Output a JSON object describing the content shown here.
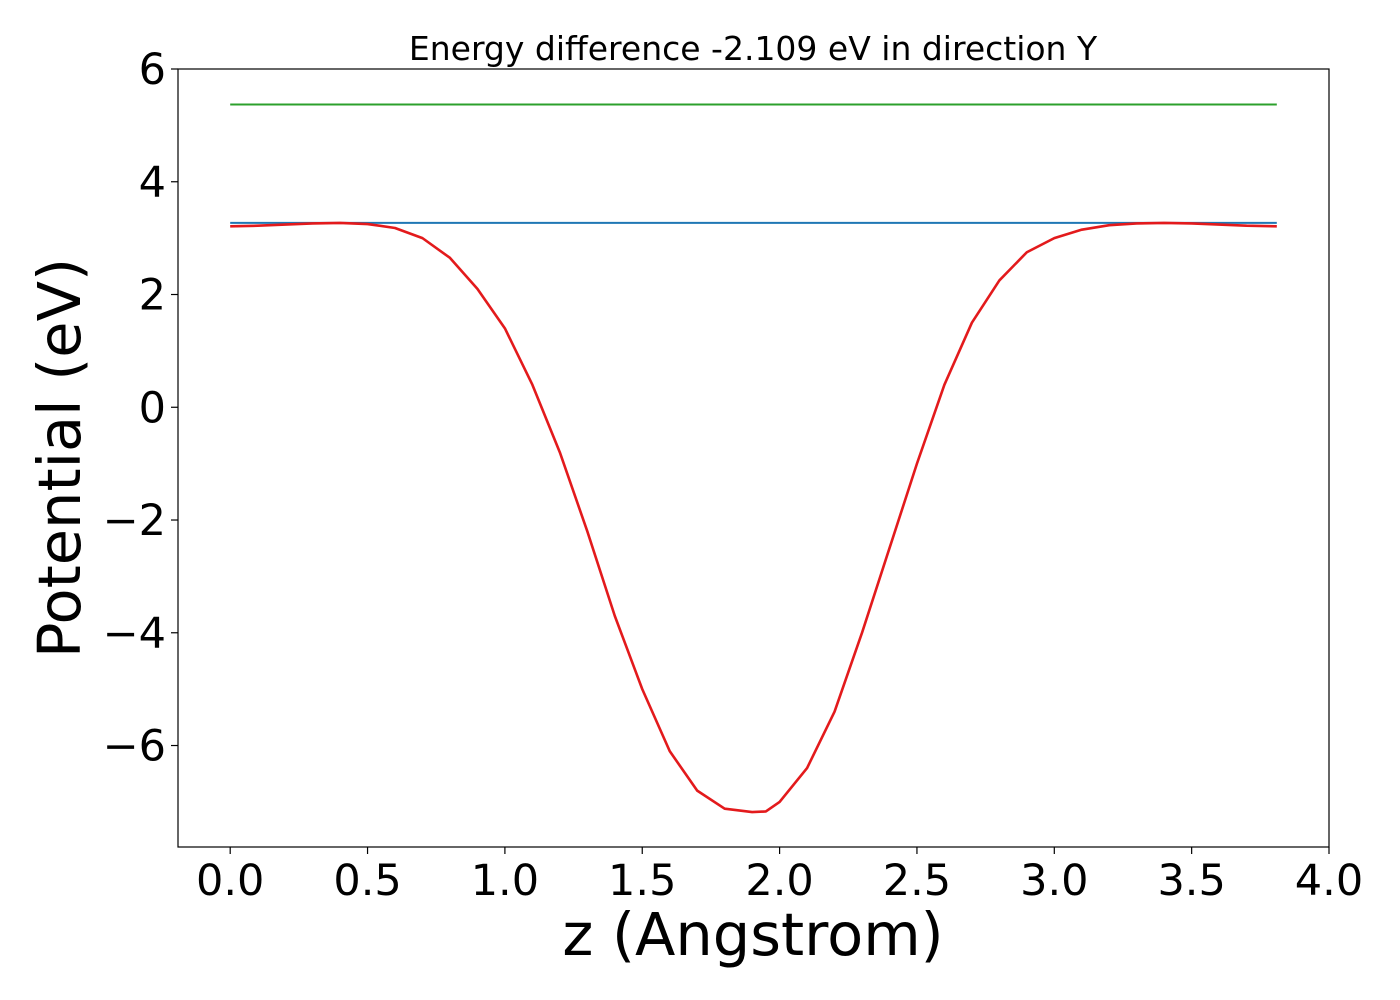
{
  "chart_data": {
    "type": "line",
    "title": "Energy difference -2.109 eV in direction Y",
    "xlabel": "z (Angstrom)",
    "ylabel": "Potential (eV)",
    "xlim": [
      -0.19,
      4.0
    ],
    "ylim": [
      -7.8,
      6.0
    ],
    "xticks": [
      0.0,
      0.5,
      1.0,
      1.5,
      2.0,
      2.5,
      3.0,
      3.5,
      4.0
    ],
    "xtick_labels": [
      "0.0",
      "0.5",
      "1.0",
      "1.5",
      "2.0",
      "2.5",
      "3.0",
      "3.5",
      "4.0"
    ],
    "yticks": [
      6,
      4,
      2,
      0,
      -2,
      -4,
      -6
    ],
    "ytick_labels": [
      "6",
      "4",
      "2",
      "0",
      "−2",
      "−4",
      "−6"
    ],
    "grid": false,
    "legend": "none",
    "series": [
      {
        "color": "#2ca02c",
        "x": [
          0.0,
          3.81
        ],
        "y": [
          5.37,
          5.37
        ]
      },
      {
        "color": "#1f77b4",
        "x": [
          0.0,
          3.81
        ],
        "y": [
          3.27,
          3.27
        ]
      },
      {
        "color": "#e31a1c",
        "x": [
          0.0,
          0.1,
          0.2,
          0.3,
          0.4,
          0.5,
          0.6,
          0.7,
          0.8,
          0.9,
          1.0,
          1.1,
          1.2,
          1.3,
          1.4,
          1.5,
          1.6,
          1.7,
          1.8,
          1.9,
          1.95,
          2.0,
          2.1,
          2.2,
          2.3,
          2.4,
          2.5,
          2.6,
          2.7,
          2.8,
          2.9,
          3.0,
          3.1,
          3.2,
          3.3,
          3.4,
          3.5,
          3.6,
          3.7,
          3.81
        ],
        "y": [
          3.21,
          3.22,
          3.24,
          3.26,
          3.27,
          3.25,
          3.18,
          3.0,
          2.65,
          2.1,
          1.4,
          0.4,
          -0.8,
          -2.2,
          -3.7,
          -5.0,
          -6.1,
          -6.8,
          -7.12,
          -7.18,
          -7.17,
          -7.0,
          -6.4,
          -5.4,
          -4.0,
          -2.5,
          -1.0,
          0.4,
          1.5,
          2.25,
          2.75,
          3.0,
          3.15,
          3.23,
          3.26,
          3.27,
          3.26,
          3.24,
          3.22,
          3.21
        ]
      }
    ]
  }
}
